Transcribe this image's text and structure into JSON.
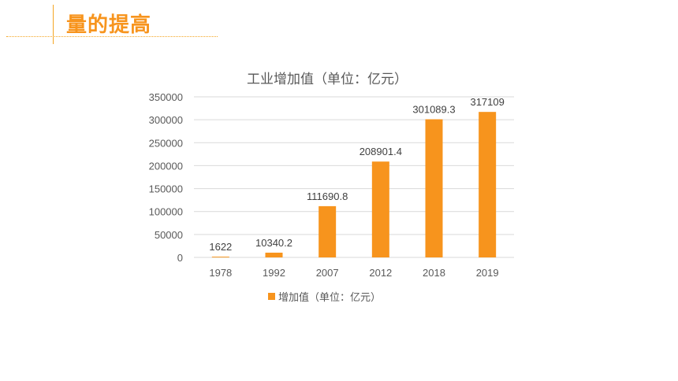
{
  "header": {
    "title": "量的提高"
  },
  "colors": {
    "accent": "#f7941d",
    "grid": "#d9d9d9",
    "text": "#595959"
  },
  "chart_data": {
    "type": "bar",
    "title": "工业增加值（单位：亿元）",
    "categories": [
      "1978",
      "1992",
      "2007",
      "2012",
      "2018",
      "2019"
    ],
    "series": [
      {
        "name": "增加值（单位：亿元）",
        "values": [
          1622,
          10340.2,
          111690.8,
          208901.4,
          301089.3,
          317109
        ],
        "labels": [
          "1622",
          "10340.2",
          "111690.8",
          "208901.4",
          "301089.3",
          "317109"
        ]
      }
    ],
    "yticks": [
      "0",
      "50000",
      "100000",
      "150000",
      "200000",
      "250000",
      "300000",
      "350000"
    ],
    "ylim": [
      0,
      350000
    ],
    "grid": true,
    "legend": "bottom"
  }
}
